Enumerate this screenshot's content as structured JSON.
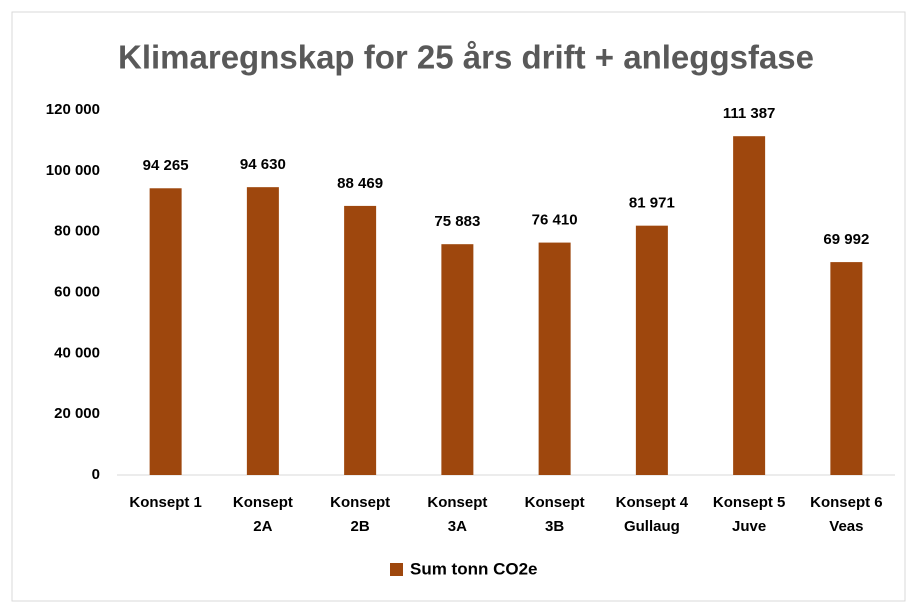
{
  "chart_data": {
    "type": "bar",
    "title": "Klimaregnskap for 25 års drift + anleggsfase",
    "categories": [
      "Konsept 1",
      "Konsept\n2A",
      "Konsept\n2B",
      "Konsept\n3A",
      "Konsept\n3B",
      "Konsept 4\nGullaug",
      "Konsept 5\nJuve",
      "Konsept 6\nVeas"
    ],
    "series": [
      {
        "name": "Sum tonn CO2e",
        "color": "#9e470d",
        "values": [
          94265,
          94630,
          88469,
          75883,
          76410,
          81971,
          111387,
          69992
        ],
        "value_labels": [
          "94 265",
          "94 630",
          "88 469",
          "75 883",
          "76 410",
          "81 971",
          "111 387",
          "69 992"
        ]
      }
    ],
    "ylim": [
      0,
      120000
    ],
    "yticks": [
      0,
      {
        "value": 20000,
        "label": "20 000"
      },
      {
        "value": 40000,
        "label": "40 000"
      },
      {
        "value": 60000,
        "label": "60 000"
      },
      {
        "value": 80000,
        "label": "80 000"
      },
      {
        "value": 100000,
        "label": "100 000"
      },
      {
        "value": 120000,
        "label": "120 000"
      }
    ],
    "grid": false,
    "legend": "bottom"
  }
}
